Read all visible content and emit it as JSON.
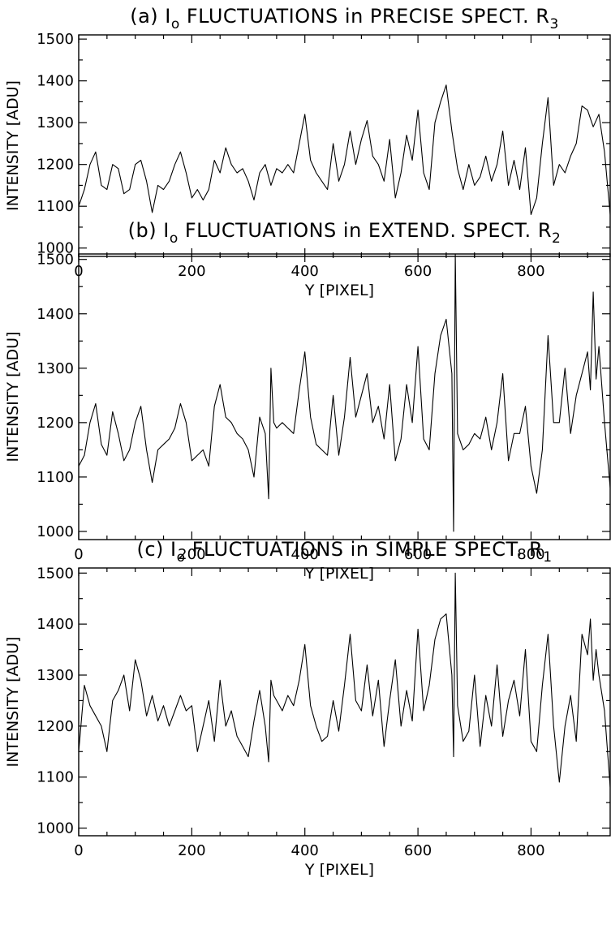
{
  "chart_data": [
    {
      "type": "line",
      "title_parts": {
        "prefix": "(a) I",
        "sub1": "o",
        "mid": " FLUCTUATIONS in PRECISE SPECT. R",
        "sub2": "3"
      },
      "xlabel": "Y [PIXEL]",
      "ylabel": "INTENSITY [ADU]",
      "xlim": [
        0,
        940
      ],
      "ylim": [
        980,
        1510
      ],
      "xticks": [
        0,
        200,
        400,
        600,
        800
      ],
      "yticks": [
        1000,
        1100,
        1200,
        1300,
        1400,
        1500
      ],
      "series": [
        {
          "x": [
            0,
            10,
            20,
            30,
            40,
            50,
            60,
            70,
            80,
            90,
            100,
            110,
            120,
            130,
            140,
            150,
            160,
            170,
            180,
            190,
            200,
            210,
            220,
            230,
            240,
            250,
            260,
            270,
            280,
            290,
            300,
            310,
            320,
            330,
            340,
            350,
            360,
            370,
            380,
            390,
            400,
            410,
            420,
            430,
            440,
            450,
            460,
            470,
            480,
            490,
            500,
            510,
            520,
            530,
            540,
            550,
            560,
            570,
            580,
            590,
            600,
            610,
            620,
            630,
            640,
            650,
            660,
            670,
            680,
            690,
            700,
            710,
            720,
            730,
            740,
            750,
            760,
            770,
            780,
            790,
            800,
            810,
            820,
            830,
            840,
            850,
            860,
            870,
            880,
            890,
            900,
            910,
            920,
            930,
            940
          ],
          "y": [
            1100,
            1140,
            1200,
            1230,
            1150,
            1140,
            1200,
            1190,
            1130,
            1140,
            1200,
            1210,
            1160,
            1085,
            1150,
            1140,
            1160,
            1200,
            1230,
            1180,
            1120,
            1140,
            1115,
            1140,
            1210,
            1180,
            1240,
            1200,
            1180,
            1190,
            1160,
            1115,
            1180,
            1200,
            1150,
            1190,
            1180,
            1200,
            1180,
            1250,
            1320,
            1210,
            1180,
            1160,
            1140,
            1250,
            1160,
            1200,
            1280,
            1200,
            1260,
            1305,
            1220,
            1200,
            1160,
            1260,
            1120,
            1180,
            1270,
            1210,
            1330,
            1180,
            1140,
            1300,
            1350,
            1390,
            1280,
            1190,
            1140,
            1200,
            1150,
            1170,
            1220,
            1160,
            1200,
            1280,
            1150,
            1210,
            1140,
            1240,
            1080,
            1120,
            1250,
            1360,
            1150,
            1200,
            1180,
            1220,
            1250,
            1340,
            1330,
            1290,
            1320,
            1230,
            1080
          ]
        }
      ]
    },
    {
      "type": "line",
      "title_parts": {
        "prefix": "(b) I",
        "sub1": "o",
        "mid": " FLUCTUATIONS in EXTEND. SPECT. R",
        "sub2": "2"
      },
      "xlabel": "Y [PIXEL]",
      "ylabel": "INTENSITY  [ADU]",
      "xlim": [
        0,
        940
      ],
      "ylim": [
        985,
        1510
      ],
      "xticks": [
        0,
        200,
        400,
        600,
        800
      ],
      "yticks": [
        1000,
        1100,
        1200,
        1300,
        1400,
        1500
      ],
      "series": [
        {
          "x": [
            0,
            10,
            20,
            30,
            40,
            50,
            60,
            70,
            80,
            90,
            100,
            110,
            120,
            130,
            140,
            150,
            160,
            170,
            180,
            190,
            200,
            210,
            220,
            230,
            240,
            250,
            260,
            270,
            280,
            290,
            300,
            310,
            320,
            330,
            336,
            340,
            345,
            350,
            360,
            370,
            380,
            390,
            400,
            410,
            420,
            430,
            440,
            450,
            460,
            470,
            480,
            490,
            500,
            510,
            520,
            530,
            540,
            550,
            560,
            570,
            580,
            590,
            600,
            610,
            620,
            630,
            640,
            650,
            660,
            663,
            666,
            670,
            680,
            690,
            700,
            710,
            720,
            730,
            740,
            750,
            760,
            770,
            780,
            790,
            800,
            810,
            820,
            830,
            840,
            850,
            860,
            870,
            880,
            890,
            900,
            905,
            910,
            915,
            920,
            930,
            940
          ],
          "y": [
            1120,
            1140,
            1200,
            1235,
            1160,
            1140,
            1220,
            1180,
            1130,
            1150,
            1200,
            1230,
            1150,
            1090,
            1150,
            1160,
            1170,
            1190,
            1235,
            1200,
            1130,
            1140,
            1150,
            1120,
            1230,
            1270,
            1210,
            1200,
            1180,
            1170,
            1150,
            1100,
            1210,
            1180,
            1060,
            1300,
            1200,
            1190,
            1200,
            1190,
            1180,
            1260,
            1330,
            1210,
            1160,
            1150,
            1140,
            1250,
            1140,
            1210,
            1320,
            1210,
            1250,
            1290,
            1200,
            1230,
            1170,
            1270,
            1130,
            1170,
            1270,
            1200,
            1340,
            1170,
            1150,
            1290,
            1360,
            1390,
            1290,
            1000,
            1510,
            1180,
            1150,
            1160,
            1180,
            1170,
            1210,
            1150,
            1200,
            1290,
            1130,
            1180,
            1180,
            1230,
            1120,
            1070,
            1150,
            1360,
            1200,
            1200,
            1300,
            1180,
            1250,
            1290,
            1330,
            1260,
            1440,
            1280,
            1340,
            1200,
            1080
          ]
        }
      ]
    },
    {
      "type": "line",
      "title_parts": {
        "prefix": "(c) I",
        "sub1": "o",
        "mid": " FLUCTUATIONS in SIMPLE SPECT. R",
        "sub2": "1"
      },
      "xlabel": "Y [PIXEL]",
      "ylabel": "INTENSITY [ADU]",
      "xlim": [
        0,
        940
      ],
      "ylim": [
        985,
        1510
      ],
      "xticks": [
        0,
        200,
        400,
        600,
        800
      ],
      "yticks": [
        1000,
        1100,
        1200,
        1300,
        1400,
        1500
      ],
      "series": [
        {
          "x": [
            0,
            10,
            20,
            30,
            40,
            50,
            60,
            70,
            80,
            90,
            100,
            110,
            120,
            130,
            140,
            150,
            160,
            170,
            180,
            190,
            200,
            210,
            220,
            230,
            240,
            250,
            260,
            270,
            280,
            290,
            300,
            310,
            320,
            330,
            336,
            340,
            345,
            350,
            360,
            370,
            380,
            390,
            400,
            410,
            420,
            430,
            440,
            450,
            460,
            470,
            480,
            490,
            500,
            510,
            520,
            530,
            540,
            550,
            560,
            570,
            580,
            590,
            600,
            610,
            620,
            630,
            640,
            650,
            660,
            663,
            666,
            670,
            680,
            690,
            700,
            710,
            720,
            730,
            740,
            750,
            760,
            770,
            780,
            790,
            800,
            810,
            820,
            830,
            840,
            850,
            860,
            870,
            880,
            890,
            900,
            905,
            910,
            915,
            920,
            930,
            940
          ],
          "y": [
            1150,
            1280,
            1240,
            1220,
            1200,
            1150,
            1250,
            1270,
            1300,
            1230,
            1330,
            1290,
            1220,
            1260,
            1210,
            1240,
            1200,
            1230,
            1260,
            1230,
            1240,
            1150,
            1200,
            1250,
            1170,
            1290,
            1200,
            1230,
            1180,
            1160,
            1140,
            1210,
            1270,
            1200,
            1130,
            1290,
            1260,
            1250,
            1230,
            1260,
            1240,
            1290,
            1360,
            1240,
            1200,
            1170,
            1180,
            1250,
            1190,
            1280,
            1380,
            1250,
            1230,
            1320,
            1220,
            1290,
            1160,
            1250,
            1330,
            1200,
            1270,
            1210,
            1390,
            1230,
            1280,
            1370,
            1410,
            1420,
            1300,
            1140,
            1500,
            1240,
            1170,
            1190,
            1300,
            1160,
            1260,
            1200,
            1320,
            1180,
            1250,
            1290,
            1220,
            1350,
            1170,
            1150,
            1280,
            1380,
            1200,
            1090,
            1200,
            1260,
            1170,
            1380,
            1340,
            1410,
            1290,
            1350,
            1300,
            1230,
            1080
          ]
        }
      ]
    }
  ]
}
